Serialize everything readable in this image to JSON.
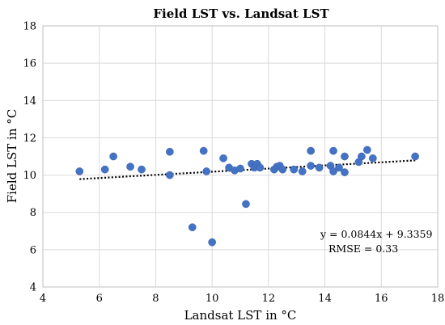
{
  "chart_data": {
    "type": "scatter",
    "title": "Field LST vs. Landsat LST",
    "xlabel": "Landsat LST in °C",
    "ylabel": "Field LST in °C",
    "xlim": [
      4,
      18
    ],
    "ylim": [
      4,
      18
    ],
    "x_ticks": [
      "4",
      "6",
      "8",
      "10",
      "12",
      "14",
      "16",
      "18"
    ],
    "y_ticks": [
      "4",
      "6",
      "8",
      "10",
      "12",
      "14",
      "16",
      "18"
    ],
    "grid": true,
    "legend": "none",
    "marker_color": "#4472c4",
    "points": [
      {
        "x": 5.3,
        "y": 10.2
      },
      {
        "x": 6.2,
        "y": 10.3
      },
      {
        "x": 6.5,
        "y": 11.0
      },
      {
        "x": 7.1,
        "y": 10.45
      },
      {
        "x": 7.5,
        "y": 10.3
      },
      {
        "x": 8.5,
        "y": 11.25
      },
      {
        "x": 8.5,
        "y": 10.0
      },
      {
        "x": 9.3,
        "y": 7.2
      },
      {
        "x": 9.7,
        "y": 11.3
      },
      {
        "x": 9.8,
        "y": 10.2
      },
      {
        "x": 10.0,
        "y": 6.4
      },
      {
        "x": 10.4,
        "y": 10.9
      },
      {
        "x": 10.6,
        "y": 10.4
      },
      {
        "x": 10.8,
        "y": 10.25
      },
      {
        "x": 11.0,
        "y": 10.35
      },
      {
        "x": 11.2,
        "y": 8.45
      },
      {
        "x": 11.4,
        "y": 10.6
      },
      {
        "x": 11.5,
        "y": 10.4
      },
      {
        "x": 11.6,
        "y": 10.6
      },
      {
        "x": 11.7,
        "y": 10.4
      },
      {
        "x": 12.2,
        "y": 10.3
      },
      {
        "x": 12.3,
        "y": 10.45
      },
      {
        "x": 12.4,
        "y": 10.5
      },
      {
        "x": 12.5,
        "y": 10.3
      },
      {
        "x": 12.9,
        "y": 10.3
      },
      {
        "x": 13.2,
        "y": 10.2
      },
      {
        "x": 13.5,
        "y": 11.3
      },
      {
        "x": 13.5,
        "y": 10.5
      },
      {
        "x": 13.8,
        "y": 10.4
      },
      {
        "x": 14.2,
        "y": 10.5
      },
      {
        "x": 14.3,
        "y": 11.3
      },
      {
        "x": 14.3,
        "y": 10.2
      },
      {
        "x": 14.5,
        "y": 10.4
      },
      {
        "x": 14.7,
        "y": 11.0
      },
      {
        "x": 14.7,
        "y": 10.15
      },
      {
        "x": 15.2,
        "y": 10.7
      },
      {
        "x": 15.3,
        "y": 11.0
      },
      {
        "x": 15.5,
        "y": 11.35
      },
      {
        "x": 15.7,
        "y": 10.9
      },
      {
        "x": 17.2,
        "y": 11.0
      }
    ],
    "trendline": {
      "slope": 0.0844,
      "intercept": 9.3359,
      "x_range": [
        5.3,
        17.2
      ]
    },
    "annotations": {
      "equation": "y = 0.0844x + 9.3359",
      "rmse": "RMSE = 0.33"
    }
  }
}
